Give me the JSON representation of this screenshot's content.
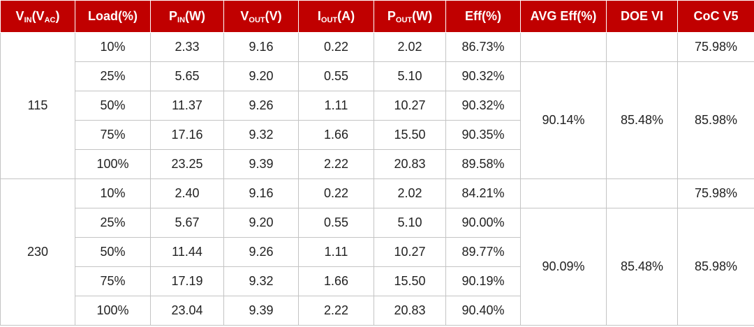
{
  "header": [
    [
      "V",
      {
        "sub": "IN"
      },
      "(V",
      {
        "sub": "AC"
      },
      ")"
    ],
    [
      "Load(%)"
    ],
    [
      "P",
      {
        "sub": "IN"
      },
      "(W)"
    ],
    [
      "V",
      {
        "sub": "OUT"
      },
      "(V)"
    ],
    [
      "I",
      {
        "sub": "OUT"
      },
      "(A)"
    ],
    [
      "P",
      {
        "sub": "OUT"
      },
      "(W)"
    ],
    [
      "Eff(%)"
    ],
    [
      "AVG Eff(%)"
    ],
    [
      "DOE VI"
    ],
    [
      "CoC V5"
    ]
  ],
  "groups": [
    {
      "vin": "115",
      "rows": [
        [
          "10%",
          "2.33",
          "9.16",
          "0.22",
          "2.02",
          "86.73%"
        ],
        [
          "25%",
          "5.65",
          "9.20",
          "0.55",
          "5.10",
          "90.32%"
        ],
        [
          "50%",
          "11.37",
          "9.26",
          "1.11",
          "10.27",
          "90.32%"
        ],
        [
          "75%",
          "17.16",
          "9.32",
          "1.66",
          "15.50",
          "90.35%"
        ],
        [
          "100%",
          "23.25",
          "9.39",
          "2.22",
          "20.83",
          "89.58%"
        ]
      ],
      "first_coc": "75.98%",
      "avg_eff": "90.14%",
      "doe": "85.48%",
      "coc": "85.98%"
    },
    {
      "vin": "230",
      "rows": [
        [
          "10%",
          "2.40",
          "9.16",
          "0.22",
          "2.02",
          "84.21%"
        ],
        [
          "25%",
          "5.67",
          "9.20",
          "0.55",
          "5.10",
          "90.00%"
        ],
        [
          "50%",
          "11.44",
          "9.26",
          "1.11",
          "10.27",
          "89.77%"
        ],
        [
          "75%",
          "17.19",
          "9.32",
          "1.66",
          "15.50",
          "90.19%"
        ],
        [
          "100%",
          "23.04",
          "9.39",
          "2.22",
          "20.83",
          "90.40%"
        ]
      ],
      "first_coc": "75.98%",
      "avg_eff": "90.09%",
      "doe": "85.48%",
      "coc": "85.98%"
    }
  ]
}
